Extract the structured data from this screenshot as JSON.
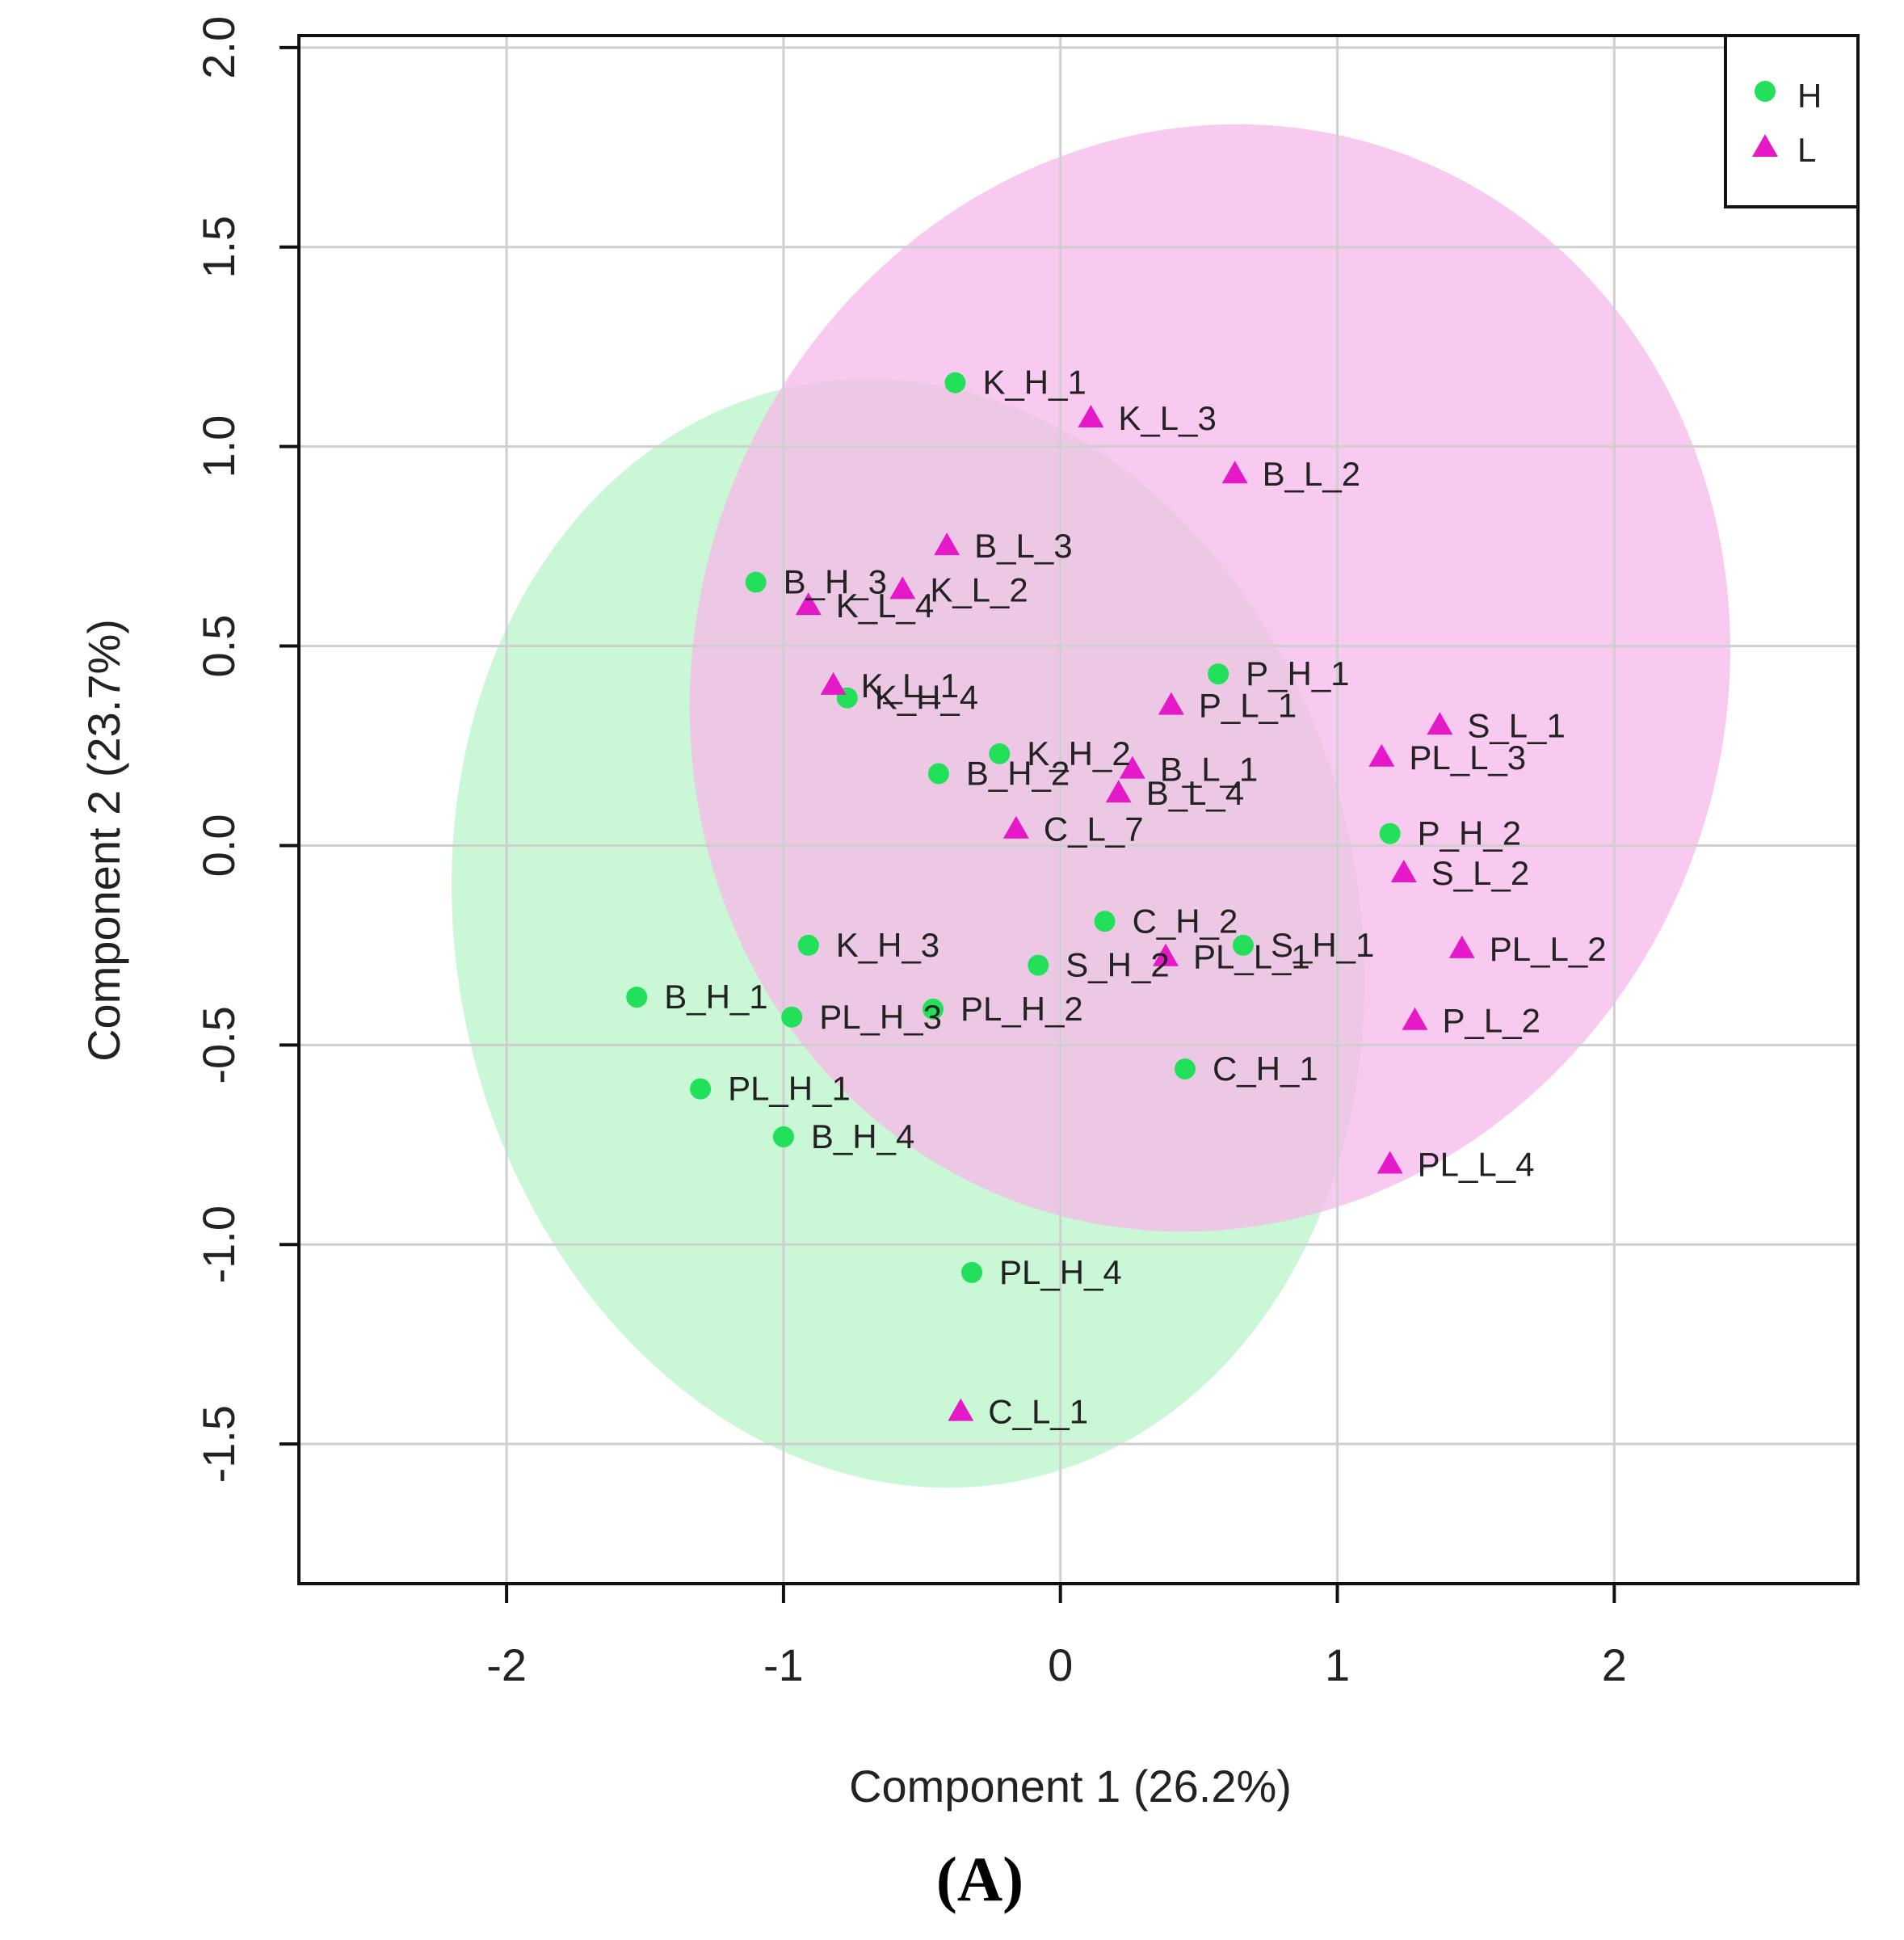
{
  "chart_data": {
    "type": "scatter",
    "title": "",
    "xlabel": "Component 1  (26.2%)",
    "ylabel": "Component 2  (23.7%)",
    "xlim": [
      -2.75,
      2.88
    ],
    "ylim": [
      -1.85,
      2.03
    ],
    "xticks": [
      -2,
      -1,
      0,
      1,
      2
    ],
    "xtick_labels": [
      "-2",
      "-1",
      "0",
      "1",
      "2"
    ],
    "yticks": [
      -1.5,
      -1.0,
      -0.5,
      0.0,
      0.5,
      1.0,
      1.5,
      2.0
    ],
    "ytick_labels": [
      "-1.5",
      "-1.0",
      "-0.5",
      "0.0",
      "0.5",
      "1.0",
      "1.5",
      "2.0"
    ],
    "grid": true,
    "legend_position": "top-right",
    "panel_label": "(A)",
    "series": [
      {
        "name": "H",
        "marker": "circle",
        "color": "#22e05a",
        "ellipse_color": "#b8f5c8",
        "ellipse": {
          "cx": -0.55,
          "cy": -0.22,
          "rx": 1.63,
          "ry": 1.4,
          "angle_deg": 12
        },
        "points": [
          {
            "label": "K_H_1",
            "x": -0.38,
            "y": 1.16
          },
          {
            "label": "B_H_3",
            "x": -1.1,
            "y": 0.66
          },
          {
            "label": "K_H_4",
            "x": -0.77,
            "y": 0.37
          },
          {
            "label": "P_H_1",
            "x": 0.57,
            "y": 0.43
          },
          {
            "label": "K_H_2",
            "x": -0.22,
            "y": 0.23
          },
          {
            "label": "B_H_2",
            "x": -0.44,
            "y": 0.18
          },
          {
            "label": "P_H_2",
            "x": 1.19,
            "y": 0.03
          },
          {
            "label": "C_H_2",
            "x": 0.16,
            "y": -0.19
          },
          {
            "label": "S_H_1",
            "x": 0.66,
            "y": -0.25
          },
          {
            "label": "K_H_3",
            "x": -0.91,
            "y": -0.25
          },
          {
            "label": "S_H_2",
            "x": -0.08,
            "y": -0.3
          },
          {
            "label": "B_H_1",
            "x": -1.53,
            "y": -0.38
          },
          {
            "label": "PL_H_3",
            "x": -0.97,
            "y": -0.43
          },
          {
            "label": "PL_H_2",
            "x": -0.46,
            "y": -0.41
          },
          {
            "label": "C_H_1",
            "x": 0.45,
            "y": -0.56
          },
          {
            "label": "PL_H_1",
            "x": -1.3,
            "y": -0.61
          },
          {
            "label": "B_H_4",
            "x": -1.0,
            "y": -0.73
          },
          {
            "label": "PL_H_4",
            "x": -0.32,
            "y": -1.07
          }
        ]
      },
      {
        "name": "L",
        "marker": "triangle",
        "color": "#e619c8",
        "ellipse_color": "#f7b8ea",
        "ellipse": {
          "cx": 0.54,
          "cy": 0.42,
          "rx": 1.86,
          "ry": 1.4,
          "angle_deg": -20
        },
        "points": [
          {
            "label": "K_L_3",
            "x": 0.11,
            "y": 1.07
          },
          {
            "label": "B_L_2",
            "x": 0.63,
            "y": 0.93
          },
          {
            "label": "B_L_3",
            "x": -0.41,
            "y": 0.75
          },
          {
            "label": "K_L_2",
            "x": -0.57,
            "y": 0.64
          },
          {
            "label": "K_L_4",
            "x": -0.91,
            "y": 0.6
          },
          {
            "label": "K_L_1",
            "x": -0.82,
            "y": 0.4
          },
          {
            "label": "P_L_1",
            "x": 0.4,
            "y": 0.35
          },
          {
            "label": "S_L_1",
            "x": 1.37,
            "y": 0.3
          },
          {
            "label": "PL_L_3",
            "x": 1.16,
            "y": 0.22
          },
          {
            "label": "B_L_1",
            "x": 0.26,
            "y": 0.19
          },
          {
            "label": "B_L_4",
            "x": 0.21,
            "y": 0.13
          },
          {
            "label": "C_L_7",
            "x": -0.16,
            "y": 0.04
          },
          {
            "label": "S_L_2",
            "x": 1.24,
            "y": -0.07
          },
          {
            "label": "PL_L_1",
            "x": 0.38,
            "y": -0.28
          },
          {
            "label": "PL_L_2",
            "x": 1.45,
            "y": -0.26
          },
          {
            "label": "P_L_2",
            "x": 1.28,
            "y": -0.44
          },
          {
            "label": "PL_L_4",
            "x": 1.19,
            "y": -0.8
          },
          {
            "label": "C_L_1",
            "x": -0.36,
            "y": -1.42
          }
        ]
      }
    ]
  }
}
